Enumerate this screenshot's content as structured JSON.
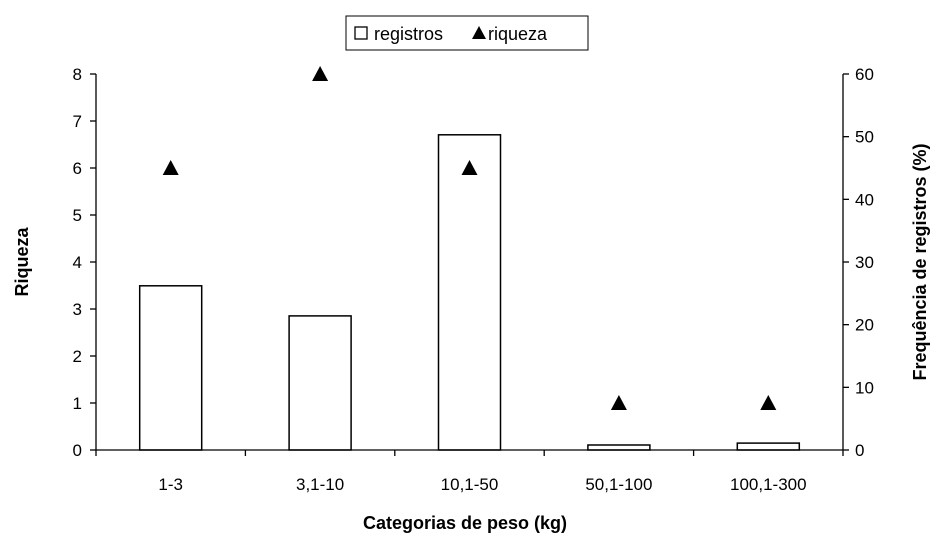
{
  "chart_data": {
    "type": "bar",
    "categories": [
      "1-3",
      "3,1-10",
      "10,1-50",
      "50,1-100",
      "100,1-300"
    ],
    "xlabel": "Categorias de peso (kg)",
    "y_left": {
      "label": "Riqueza",
      "range": [
        0,
        8
      ],
      "ticks": [
        "0",
        "1",
        "2",
        "3",
        "4",
        "5",
        "6",
        "7",
        "8"
      ]
    },
    "y_right": {
      "label": "Frequência de registros (%)",
      "range": [
        0,
        60
      ],
      "ticks": [
        "0",
        "10",
        "20",
        "30",
        "40",
        "50",
        "60"
      ]
    },
    "series": [
      {
        "name": "registros",
        "kind": "bar",
        "axis": "right",
        "values": [
          26.2,
          21.4,
          50.3,
          0.8,
          1.1
        ],
        "fill": "#ffffff",
        "stroke": "#000000"
      },
      {
        "name": "riqueza",
        "kind": "marker",
        "marker": "triangle",
        "axis": "left",
        "values": [
          6,
          8,
          6,
          1,
          1
        ],
        "color": "#000000"
      }
    ],
    "legend": {
      "position": "top",
      "items": [
        {
          "label": "registros",
          "symbol": "square-outline"
        },
        {
          "label": "riqueza",
          "symbol": "triangle-filled"
        }
      ]
    },
    "grid": false
  }
}
